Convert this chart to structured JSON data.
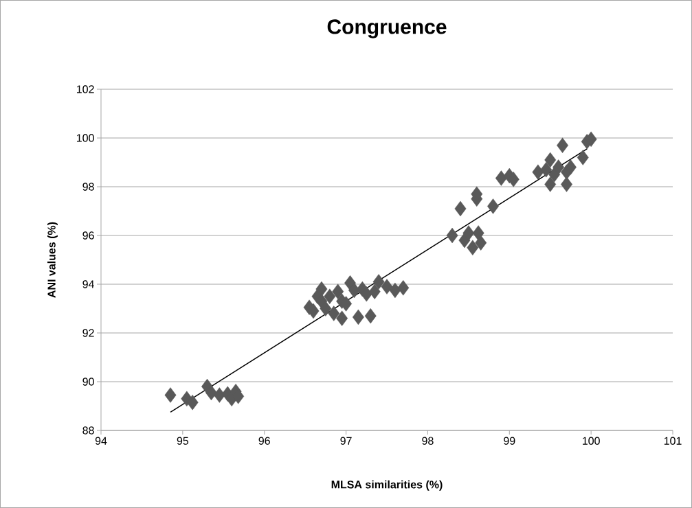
{
  "chart_data": {
    "type": "scatter",
    "title": "Congruence",
    "xlabel": "MLSA similarities (%)",
    "ylabel": "ANI values (%)",
    "xlim": [
      94,
      101
    ],
    "xticks": [
      94,
      95,
      96,
      97,
      98,
      99,
      100,
      101
    ],
    "ylim": [
      88,
      102
    ],
    "yticks": [
      88,
      90,
      92,
      94,
      96,
      98,
      100,
      102
    ],
    "grid": "y",
    "marker": "diamond",
    "series": [
      {
        "color": "#595959",
        "x": [
          94.85,
          95.05,
          95.12,
          95.3,
          95.35,
          95.45,
          95.55,
          95.6,
          95.65,
          95.68,
          96.55,
          96.6,
          96.65,
          96.7,
          96.7,
          96.75,
          96.8,
          96.85,
          96.9,
          96.95,
          96.95,
          97.0,
          97.05,
          97.1,
          97.15,
          97.2,
          97.25,
          97.3,
          97.35,
          97.4,
          97.5,
          97.6,
          97.7,
          98.3,
          98.4,
          98.45,
          98.5,
          98.55,
          98.6,
          98.6,
          98.62,
          98.65,
          98.8,
          98.9,
          99.0,
          99.05,
          99.35,
          99.45,
          99.5,
          99.5,
          99.55,
          99.6,
          99.65,
          99.7,
          99.7,
          99.75,
          99.9,
          99.95,
          100.0
        ],
        "values": [
          89.45,
          89.3,
          89.15,
          89.8,
          89.55,
          89.45,
          89.5,
          89.3,
          89.6,
          89.4,
          93.05,
          92.9,
          93.5,
          93.8,
          93.3,
          93.0,
          93.5,
          92.8,
          93.7,
          92.6,
          93.3,
          93.2,
          94.05,
          93.75,
          92.65,
          93.8,
          93.6,
          92.7,
          93.7,
          94.1,
          93.9,
          93.75,
          93.85,
          96.0,
          97.1,
          95.8,
          96.1,
          95.5,
          97.5,
          97.7,
          96.1,
          95.7,
          97.2,
          98.35,
          98.45,
          98.3,
          98.6,
          98.7,
          99.1,
          98.1,
          98.5,
          98.8,
          99.7,
          98.1,
          98.6,
          98.8,
          99.2,
          99.85,
          99.95
        ]
      },
      {
        "type": "line",
        "color": "#000000",
        "marker": "none",
        "x": [
          94.85,
          99.95
        ],
        "values": [
          88.75,
          99.55
        ]
      }
    ]
  }
}
